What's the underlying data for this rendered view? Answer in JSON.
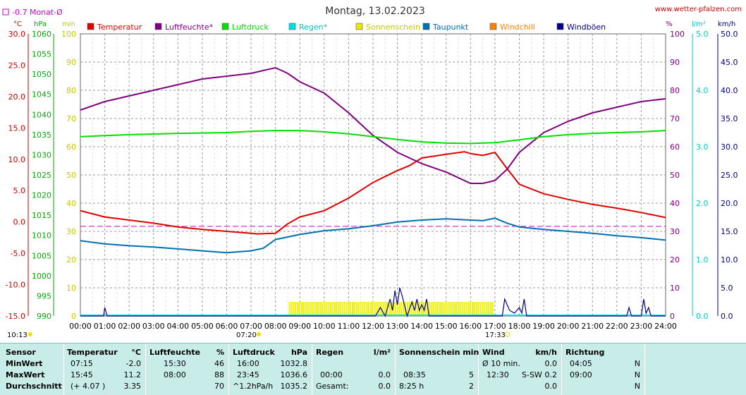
{
  "header": {
    "title": "Montag, 13.02.2023",
    "site": "www.wetter-pfalzen.com",
    "monthly_avg": "-0.7 Monat-Ø"
  },
  "units": {
    "temp": "°C",
    "pressure": "hPa",
    "minutes": "min",
    "humidity": "%",
    "rain": "l/m²",
    "wind": "km/h"
  },
  "legend": [
    {
      "label": "Temperatur",
      "color": "#e00000"
    },
    {
      "label": "Luftfeuchte*",
      "color": "#800080"
    },
    {
      "label": "Luftdruck",
      "color": "#00e000"
    },
    {
      "label": "Regen*",
      "color": "#00e0e0"
    },
    {
      "label": "Sonnenschein",
      "color": "#e8e800"
    },
    {
      "label": "Taupunkt",
      "color": "#0070b0"
    },
    {
      "label": "Windchill",
      "color": "#ff8000"
    },
    {
      "label": "Windböen",
      "color": "#000080"
    }
  ],
  "axis_labels": {
    "temp": [
      "30.0",
      "25.0",
      "20.0",
      "15.0",
      "10.0",
      "5.0",
      "0.0",
      "-5.0",
      "-10.0",
      "-15.0"
    ],
    "pressure": [
      "1060",
      "1055",
      "1050",
      "1045",
      "1040",
      "1035",
      "1030",
      "1025",
      "1020",
      "1015",
      "1010",
      "1005",
      "1000",
      "995",
      "990"
    ],
    "minutes": [
      "100",
      "90",
      "80",
      "70",
      "60",
      "50",
      "40",
      "30",
      "20",
      "10",
      "0"
    ],
    "humidity": [
      "100",
      "90",
      "80",
      "70",
      "60",
      "50",
      "40",
      "30",
      "20",
      "10",
      "0"
    ],
    "rain": [
      "5.0",
      "4.0",
      "3.0",
      "2.0",
      "1.0",
      "0.0"
    ],
    "wind": [
      "50.0",
      "45.0",
      "40.0",
      "35.0",
      "30.0",
      "25.0",
      "20.0",
      "15.0",
      "10.0",
      "5.0",
      "0.0"
    ],
    "hours": [
      "00:00",
      "01:00",
      "02:00",
      "03:00",
      "04:00",
      "05:00",
      "06:00",
      "07:00",
      "08:00",
      "09:00",
      "10:00",
      "11:00",
      "12:00",
      "13:00",
      "14:00",
      "15:00",
      "16:00",
      "17:00",
      "18:00",
      "19:00",
      "20:00",
      "21:00",
      "22:00",
      "23:00",
      "24:00"
    ]
  },
  "annotations": {
    "sunrise": "07:20",
    "sunset": "17:33",
    "moonrise": "10:13"
  },
  "chart_data": {
    "type": "line",
    "x_unit": "hours",
    "x_range": [
      0,
      24
    ],
    "temp_range": [
      -15,
      30
    ],
    "humidity_range": [
      0,
      100
    ],
    "monthly_avg_temp": -0.7,
    "series": [
      {
        "name": "Temperatur",
        "axis": "temp",
        "points": [
          [
            0,
            1.8
          ],
          [
            1,
            0.8
          ],
          [
            2,
            0.3
          ],
          [
            3,
            -0.2
          ],
          [
            4,
            -0.8
          ],
          [
            5,
            -1.2
          ],
          [
            6,
            -1.5
          ],
          [
            7,
            -1.8
          ],
          [
            7.25,
            -1.9
          ],
          [
            8,
            -1.8
          ],
          [
            8.5,
            -0.3
          ],
          [
            9,
            0.8
          ],
          [
            10,
            1.8
          ],
          [
            11,
            3.8
          ],
          [
            12,
            6.3
          ],
          [
            13,
            8.2
          ],
          [
            13.5,
            9.0
          ],
          [
            14,
            10.2
          ],
          [
            15,
            10.8
          ],
          [
            15.75,
            11.2
          ],
          [
            16,
            10.9
          ],
          [
            16.5,
            10.6
          ],
          [
            17,
            11.1
          ],
          [
            17.5,
            8.5
          ],
          [
            18,
            6.0
          ],
          [
            19,
            4.5
          ],
          [
            20,
            3.6
          ],
          [
            21,
            2.8
          ],
          [
            22,
            2.2
          ],
          [
            23,
            1.5
          ],
          [
            24,
            0.7
          ]
        ]
      },
      {
        "name": "Luftfeuchte*",
        "axis": "humidity",
        "points": [
          [
            0,
            73
          ],
          [
            1,
            76
          ],
          [
            2,
            78
          ],
          [
            3,
            80
          ],
          [
            4,
            82
          ],
          [
            5,
            84
          ],
          [
            6,
            85
          ],
          [
            7,
            86
          ],
          [
            8,
            88
          ],
          [
            8.5,
            86
          ],
          [
            9,
            83
          ],
          [
            10,
            79
          ],
          [
            11,
            72
          ],
          [
            12,
            64
          ],
          [
            13,
            58
          ],
          [
            14,
            54
          ],
          [
            15,
            51
          ],
          [
            16,
            47
          ],
          [
            16.5,
            47
          ],
          [
            17,
            48
          ],
          [
            17.5,
            52
          ],
          [
            18,
            58
          ],
          [
            19,
            65
          ],
          [
            20,
            69
          ],
          [
            21,
            72
          ],
          [
            22,
            74
          ],
          [
            23,
            76
          ],
          [
            24,
            77
          ]
        ]
      },
      {
        "name": "Luftdruck",
        "axis": "pressure",
        "points": [
          [
            0,
            1034.5
          ],
          [
            2,
            1035.0
          ],
          [
            4,
            1035.3
          ],
          [
            6,
            1035.5
          ],
          [
            7,
            1035.8
          ],
          [
            8,
            1036.0
          ],
          [
            9,
            1036.0
          ],
          [
            10,
            1035.7
          ],
          [
            11,
            1035.2
          ],
          [
            12,
            1034.5
          ],
          [
            13,
            1033.8
          ],
          [
            14,
            1033.2
          ],
          [
            15,
            1032.9
          ],
          [
            16,
            1032.8
          ],
          [
            17,
            1033.0
          ],
          [
            18,
            1033.7
          ],
          [
            19,
            1034.5
          ],
          [
            20,
            1035.0
          ],
          [
            21,
            1035.3
          ],
          [
            22,
            1035.5
          ],
          [
            23,
            1035.7
          ],
          [
            24,
            1036.0
          ]
        ]
      },
      {
        "name": "Taupunkt",
        "axis": "temp",
        "points": [
          [
            0,
            -3.0
          ],
          [
            1,
            -3.5
          ],
          [
            2,
            -3.8
          ],
          [
            3,
            -4.0
          ],
          [
            4,
            -4.3
          ],
          [
            5,
            -4.6
          ],
          [
            6,
            -4.9
          ],
          [
            7,
            -4.6
          ],
          [
            7.5,
            -4.2
          ],
          [
            8,
            -2.8
          ],
          [
            9,
            -2.0
          ],
          [
            10,
            -1.4
          ],
          [
            11,
            -1.1
          ],
          [
            12,
            -0.6
          ],
          [
            13,
            0
          ],
          [
            14,
            0.3
          ],
          [
            15,
            0.5
          ],
          [
            16,
            0.3
          ],
          [
            16.5,
            0.2
          ],
          [
            17,
            0.6
          ],
          [
            17.5,
            -0.2
          ],
          [
            18,
            -0.8
          ],
          [
            19,
            -1.2
          ],
          [
            20,
            -1.5
          ],
          [
            21,
            -1.8
          ],
          [
            22,
            -2.2
          ],
          [
            23,
            -2.5
          ],
          [
            24,
            -2.9
          ]
        ]
      },
      {
        "name": "Windböen",
        "axis": "wind",
        "points": [
          [
            0,
            0
          ],
          [
            0.95,
            0
          ],
          [
            1.0,
            1.5
          ],
          [
            1.1,
            0
          ],
          [
            12.1,
            0
          ],
          [
            12.3,
            1.5
          ],
          [
            12.5,
            0
          ],
          [
            12.7,
            3.0
          ],
          [
            12.8,
            1.0
          ],
          [
            12.9,
            4.5
          ],
          [
            13.0,
            2.0
          ],
          [
            13.1,
            5.0
          ],
          [
            13.2,
            3.5
          ],
          [
            13.4,
            0
          ],
          [
            13.6,
            2.5
          ],
          [
            13.7,
            1.0
          ],
          [
            13.8,
            3.0
          ],
          [
            13.9,
            1.0
          ],
          [
            14.0,
            2.0
          ],
          [
            14.1,
            1.0
          ],
          [
            14.2,
            3.0
          ],
          [
            14.3,
            0
          ],
          [
            16.5,
            0
          ],
          [
            17.3,
            0
          ],
          [
            17.4,
            3.0
          ],
          [
            17.6,
            1.0
          ],
          [
            17.8,
            0.5
          ],
          [
            18.0,
            1.5
          ],
          [
            18.1,
            0.5
          ],
          [
            18.2,
            3.0
          ],
          [
            18.3,
            0
          ],
          [
            22.4,
            0
          ],
          [
            22.5,
            1.5
          ],
          [
            22.6,
            0
          ],
          [
            23.0,
            0
          ],
          [
            23.1,
            3.0
          ],
          [
            23.2,
            0.5
          ],
          [
            23.3,
            1.5
          ],
          [
            23.4,
            0
          ],
          [
            24,
            0
          ]
        ]
      }
    ],
    "sunshine": {
      "start": 8.55,
      "end": 16.95,
      "height_min": 5
    }
  },
  "stats": {
    "headers": {
      "sensor": "Sensor",
      "temp": "Temperatur",
      "temp_unit": "°C",
      "hum": "Luftfeuchte",
      "hum_unit": "%",
      "press": "Luftdruck",
      "press_unit": "hPa",
      "rain": "Regen",
      "rain_unit": "l/m²",
      "sun": "Sonnenschein min",
      "wind": "Wind",
      "wind_unit": "km/h",
      "dir": "Richtung"
    },
    "rows": [
      {
        "label": "MinWert",
        "t_time": "07:15",
        "t_val": "-2.0",
        "h_time": "15:30",
        "h_val": "46",
        "p_time": "16:00",
        "p_val": "1032.8",
        "r_time": "",
        "r_val": "",
        "s_time": "",
        "s_val": "",
        "w_time": "Ø 10 min.",
        "w_mid": "",
        "w_val": "0.0",
        "d_time": "04:05",
        "d_val": "N"
      },
      {
        "label": "MaxWert",
        "t_time": "15:45",
        "t_val": "11.2",
        "h_time": "08:00",
        "h_val": "88",
        "p_time": "23:45",
        "p_val": "1036.6",
        "r_time": "00:00",
        "r_val": "0.0",
        "s_time": "08:35",
        "s_val": "5",
        "w_time": "12:30",
        "w_mid": "S-SW",
        "w_val": "0.2",
        "d_time": "09:00",
        "d_val": "N"
      },
      {
        "label": "Durchschnitt",
        "t_time": "(+ 4.07 )",
        "t_val": "3.35",
        "h_time": "",
        "h_val": "70",
        "p_time": "^1.2hPa/h",
        "p_val": "1035.2",
        "r_time": "Gesamt:",
        "r_val": "0.0",
        "s_time": "8:25 h",
        "s_val": "2",
        "w_time": "",
        "w_mid": "",
        "w_val": "0.0",
        "d_time": "",
        "d_val": "N"
      }
    ]
  }
}
